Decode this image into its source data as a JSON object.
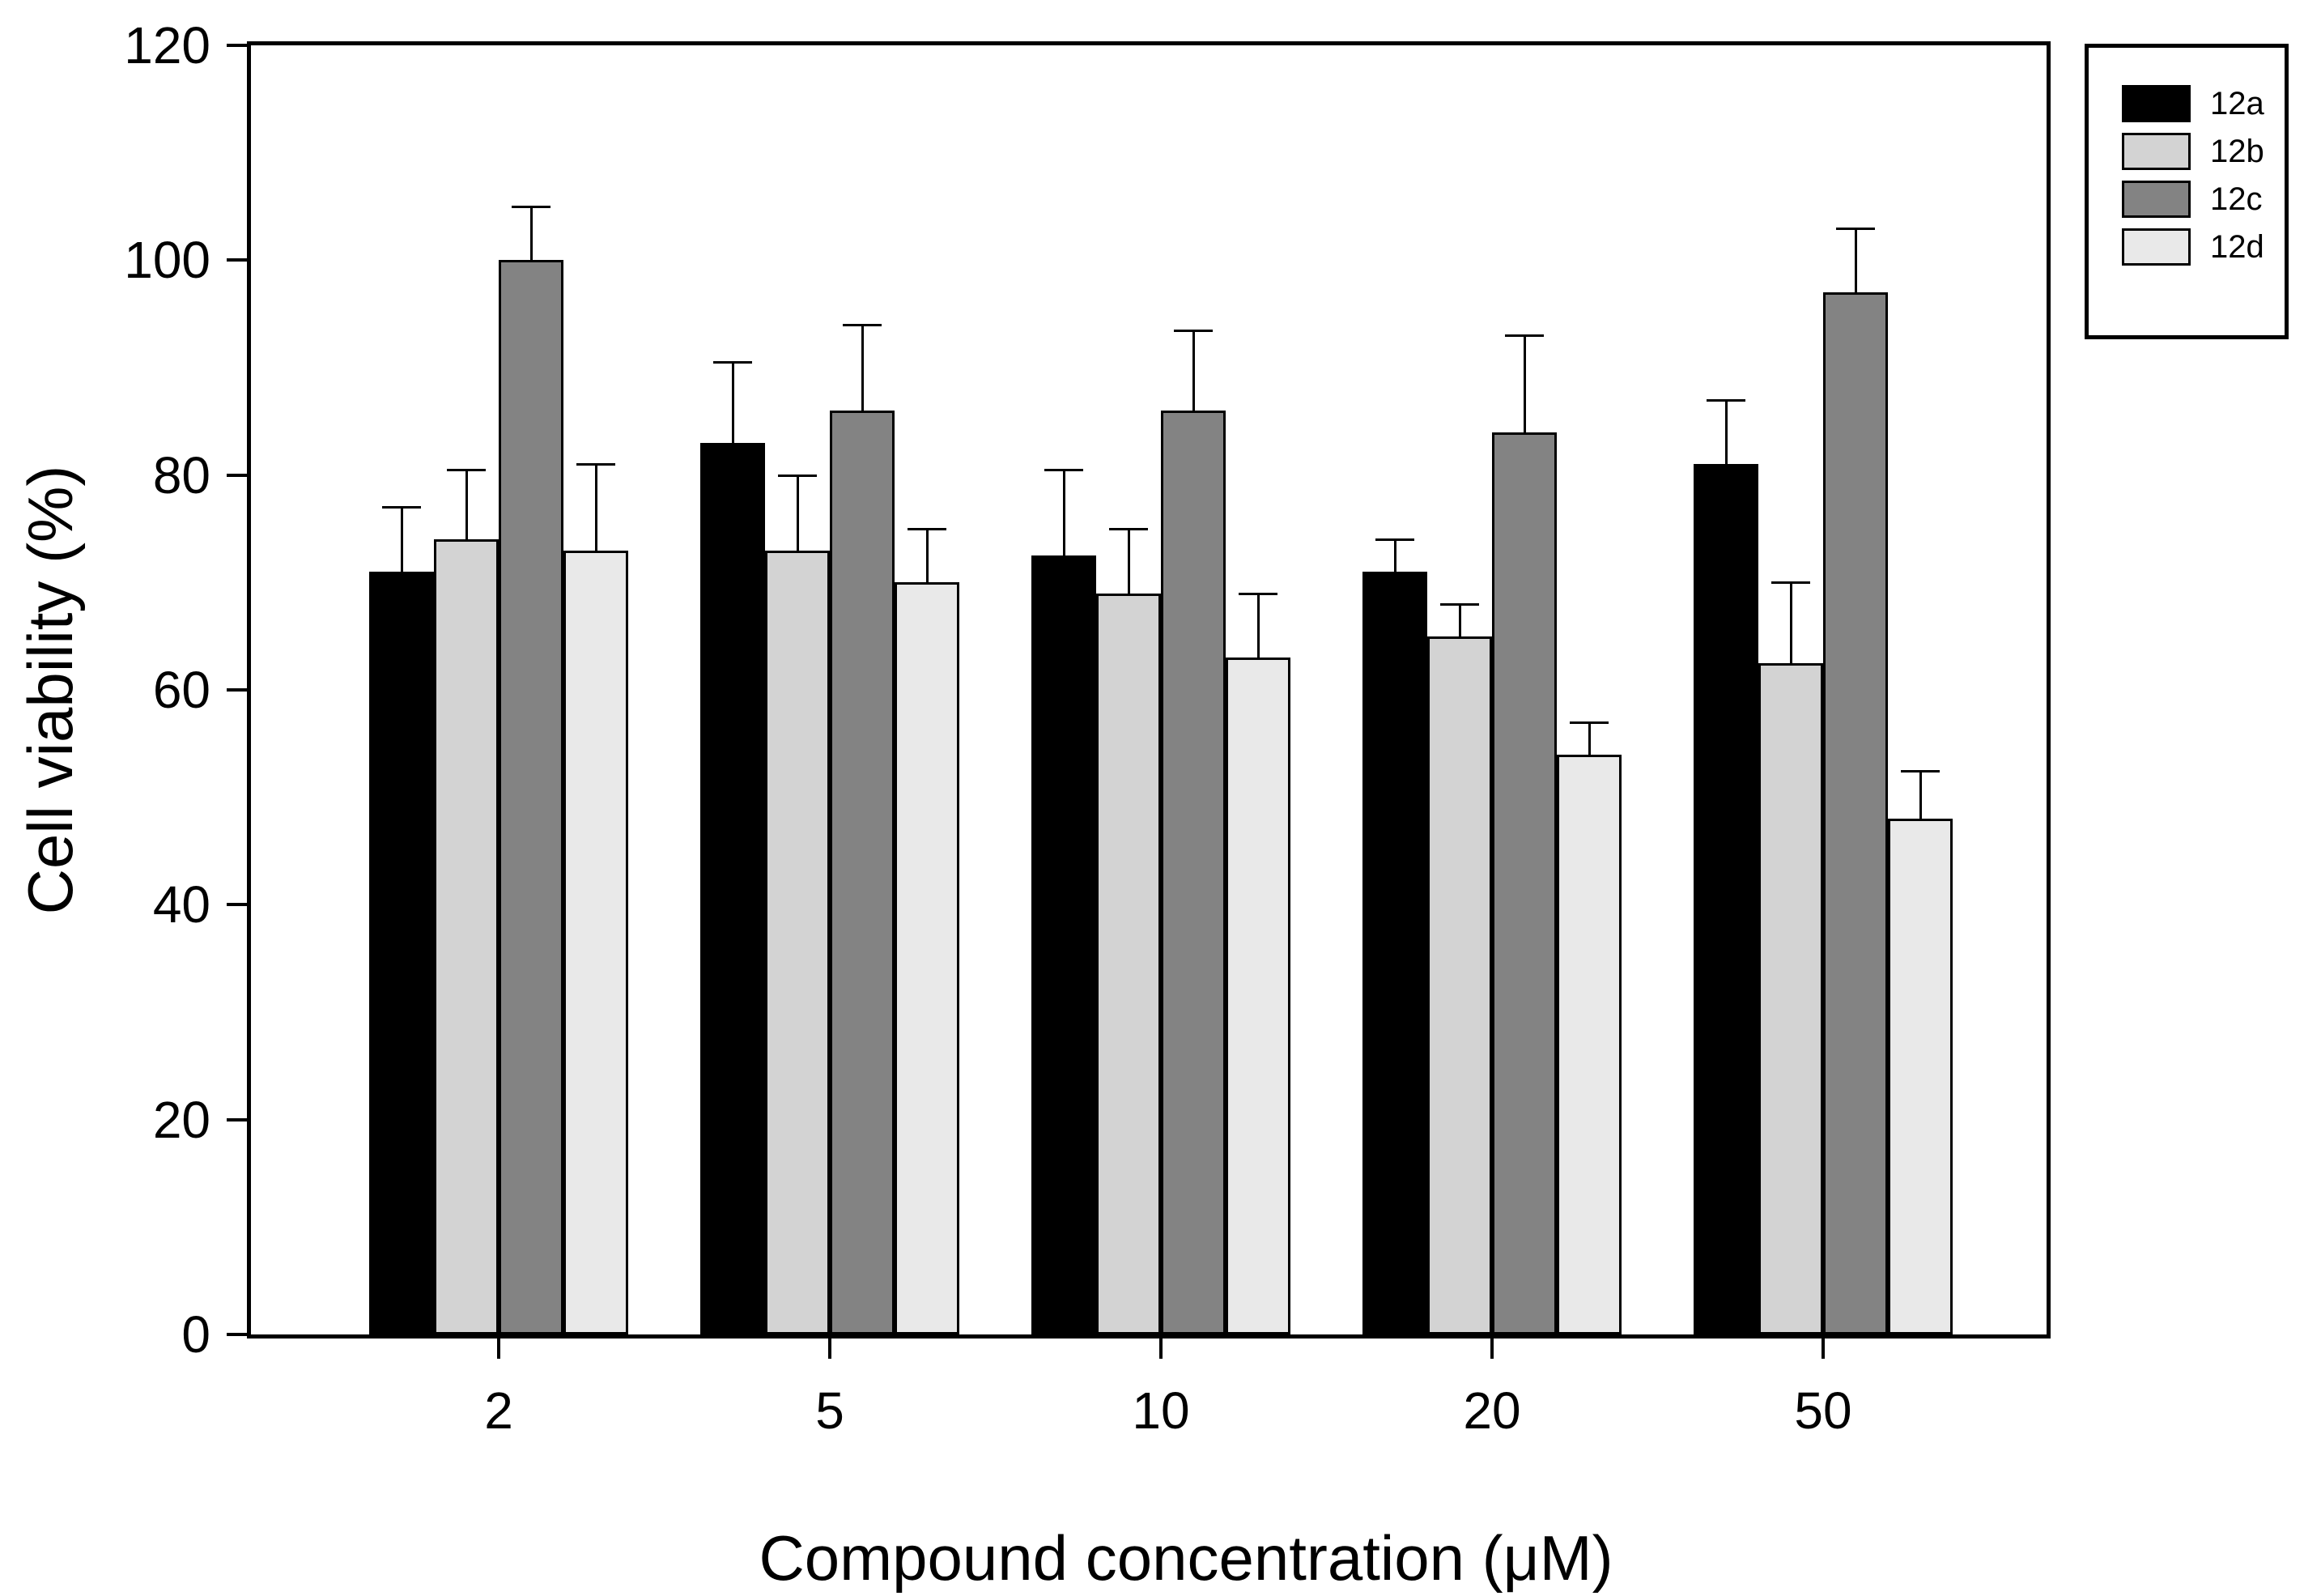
{
  "figure": {
    "background": "#ffffff",
    "frame_color": "#000000"
  },
  "chart_data": {
    "type": "bar",
    "title": "",
    "xlabel": "Compound concentration (μM)",
    "ylabel": "Cell viability (%)",
    "categories": [
      "2",
      "5",
      "10",
      "20",
      "50"
    ],
    "series": [
      {
        "name": "12a",
        "color": "#000000",
        "values": [
          71,
          83,
          72.5,
          71,
          81
        ],
        "errors_up": [
          6,
          7.5,
          8,
          3,
          6
        ]
      },
      {
        "name": "12b",
        "color": "#d3d3d3",
        "values": [
          74,
          73,
          69,
          65,
          62.5
        ],
        "errors_up": [
          6.5,
          7,
          6,
          3,
          7.5
        ]
      },
      {
        "name": "12c",
        "color": "#838383",
        "values": [
          100,
          86,
          86,
          84,
          97
        ],
        "errors_up": [
          5,
          8,
          7.5,
          9,
          6
        ]
      },
      {
        "name": "12d",
        "color": "#e9e9e9",
        "values": [
          73,
          70,
          63,
          54,
          48
        ],
        "errors_up": [
          8,
          5,
          6,
          3,
          4.5
        ]
      }
    ],
    "ylim": [
      0,
      120
    ],
    "y_ticks": [
      0,
      20,
      40,
      60,
      80,
      100,
      120
    ],
    "grid": false,
    "error_bars": "upper-only",
    "bar_outline_color": "#000000",
    "legend_position": "outside-top-right",
    "legend_entries": [
      "12a",
      "12b",
      "12c",
      "12d"
    ]
  }
}
